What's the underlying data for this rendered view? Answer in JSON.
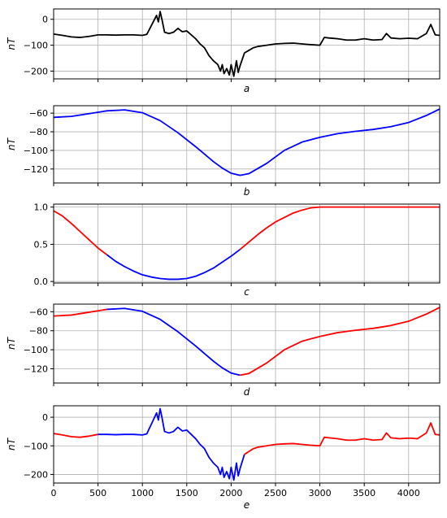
{
  "colors": {
    "original": "#000000",
    "low": "#0000ff",
    "high": "#ff0000",
    "grid": "#b0b0b0"
  },
  "chart_data": [
    {
      "type": "line",
      "sublabel": "a",
      "ylabel": "nT",
      "xlim": [
        0,
        4350
      ],
      "ylim": [
        -230,
        40
      ],
      "yticks": [
        0,
        -100,
        -200
      ],
      "xticks": [
        0,
        500,
        1000,
        1500,
        2000,
        2500,
        3000,
        3500,
        4000
      ],
      "show_xtick_labels": false,
      "grid": true,
      "series": [
        {
          "color": "#000000",
          "x": [
            0,
            100,
            200,
            300,
            400,
            500,
            600,
            700,
            800,
            900,
            1000,
            1050,
            1100,
            1130,
            1160,
            1180,
            1200,
            1220,
            1250,
            1300,
            1350,
            1400,
            1450,
            1500,
            1550,
            1600,
            1650,
            1700,
            1750,
            1800,
            1850,
            1880,
            1900,
            1920,
            1950,
            1980,
            2000,
            2030,
            2060,
            2080,
            2100,
            2150,
            2200,
            2250,
            2300,
            2400,
            2500,
            2600,
            2700,
            2800,
            2900,
            3000,
            3050,
            3100,
            3200,
            3300,
            3400,
            3500,
            3600,
            3700,
            3750,
            3800,
            3900,
            4000,
            4100,
            4200,
            4250,
            4300,
            4350
          ],
          "y": [
            -57,
            -62,
            -68,
            -70,
            -66,
            -60,
            -60,
            -61,
            -60,
            -60,
            -62,
            -58,
            -25,
            -5,
            15,
            -10,
            30,
            0,
            -50,
            -55,
            -50,
            -35,
            -48,
            -45,
            -60,
            -75,
            -95,
            -110,
            -140,
            -160,
            -175,
            -200,
            -175,
            -210,
            -190,
            -215,
            -175,
            -220,
            -160,
            -205,
            -180,
            -130,
            -120,
            -110,
            -105,
            -100,
            -95,
            -93,
            -92,
            -95,
            -98,
            -100,
            -70,
            -72,
            -75,
            -80,
            -80,
            -75,
            -80,
            -78,
            -55,
            -72,
            -75,
            -73,
            -75,
            -55,
            -20,
            -60,
            -62
          ]
        }
      ]
    },
    {
      "type": "line",
      "sublabel": "b",
      "ylabel": "nT",
      "xlim": [
        0,
        4350
      ],
      "ylim": [
        -135,
        -52
      ],
      "yticks": [
        -60,
        -80,
        -100,
        -120
      ],
      "xticks": [
        0,
        500,
        1000,
        1500,
        2000,
        2500,
        3000,
        3500,
        4000
      ],
      "show_xtick_labels": false,
      "grid": true,
      "series": [
        {
          "color": "#0000ff",
          "x": [
            0,
            200,
            400,
            600,
            800,
            1000,
            1200,
            1400,
            1600,
            1800,
            1900,
            2000,
            2100,
            2200,
            2400,
            2600,
            2800,
            3000,
            3200,
            3400,
            3600,
            3800,
            4000,
            4200,
            4350
          ],
          "y": [
            -64.5,
            -63.5,
            -60.5,
            -57.5,
            -56.5,
            -59.5,
            -68,
            -81,
            -96,
            -112,
            -119,
            -124.5,
            -126.8,
            -125,
            -114,
            -100,
            -91,
            -86,
            -82,
            -79.5,
            -77.5,
            -74.5,
            -70,
            -62.5,
            -55.5
          ]
        }
      ]
    },
    {
      "type": "line",
      "sublabel": "c",
      "ylabel": "",
      "xlim": [
        0,
        4350
      ],
      "ylim": [
        -0.02,
        1.04
      ],
      "yticks": [
        1.0,
        0.5,
        0.0
      ],
      "ytick_labels": [
        "1.0",
        "0.5",
        "0.0"
      ],
      "xticks": [
        0,
        500,
        1000,
        1500,
        2000,
        2500,
        3000,
        3500,
        4000
      ],
      "show_xtick_labels": false,
      "grid": true,
      "series": [
        {
          "color": "#ff0000",
          "x": [
            0,
            100,
            200,
            300,
            400,
            500,
            600
          ],
          "y": [
            0.95,
            0.88,
            0.78,
            0.67,
            0.56,
            0.45,
            0.36
          ]
        },
        {
          "color": "#0000ff",
          "x": [
            600,
            700,
            800,
            900,
            1000,
            1100,
            1200,
            1300,
            1400,
            1500,
            1600,
            1700,
            1800,
            1900,
            2000,
            2100
          ],
          "y": [
            0.36,
            0.27,
            0.2,
            0.14,
            0.09,
            0.06,
            0.04,
            0.03,
            0.03,
            0.04,
            0.07,
            0.12,
            0.18,
            0.26,
            0.34,
            0.43
          ]
        },
        {
          "color": "#ff0000",
          "x": [
            2100,
            2200,
            2300,
            2400,
            2500,
            2600,
            2700,
            2800,
            2900,
            3000,
            3500,
            4000,
            4350
          ],
          "y": [
            0.43,
            0.53,
            0.63,
            0.72,
            0.8,
            0.86,
            0.92,
            0.96,
            0.99,
            1.0,
            1.0,
            1.0,
            1.0
          ]
        }
      ]
    },
    {
      "type": "line",
      "sublabel": "d",
      "ylabel": "nT",
      "xlim": [
        0,
        4350
      ],
      "ylim": [
        -135,
        -52
      ],
      "yticks": [
        -60,
        -80,
        -100,
        -120
      ],
      "xticks": [
        0,
        500,
        1000,
        1500,
        2000,
        2500,
        3000,
        3500,
        4000
      ],
      "show_xtick_labels": false,
      "grid": true,
      "series": [
        {
          "color": "#ff0000",
          "x": [
            0,
            200,
            400,
            600
          ],
          "y": [
            -64.5,
            -63.5,
            -60.5,
            -57.5
          ]
        },
        {
          "color": "#0000ff",
          "x": [
            600,
            800,
            1000,
            1200,
            1400,
            1600,
            1800,
            1900,
            2000,
            2100
          ],
          "y": [
            -57.5,
            -56.5,
            -59.5,
            -68,
            -81,
            -96,
            -112,
            -119,
            -124.5,
            -126.8
          ]
        },
        {
          "color": "#ff0000",
          "x": [
            2100,
            2200,
            2400,
            2600,
            2800,
            3000,
            3200,
            3400,
            3600,
            3800,
            4000,
            4200,
            4350
          ],
          "y": [
            -126.8,
            -125,
            -114,
            -100,
            -91,
            -86,
            -82,
            -79.5,
            -77.5,
            -74.5,
            -70,
            -62.5,
            -55.5
          ]
        }
      ]
    },
    {
      "type": "line",
      "sublabel": "e",
      "ylabel": "nT",
      "xlim": [
        0,
        4350
      ],
      "ylim": [
        -230,
        40
      ],
      "yticks": [
        0,
        -100,
        -200
      ],
      "xticks": [
        0,
        500,
        1000,
        1500,
        2000,
        2500,
        3000,
        3500,
        4000
      ],
      "show_xtick_labels": true,
      "grid": true,
      "series": [
        {
          "color": "#ff0000",
          "x": [
            0,
            100,
            200,
            300,
            400,
            500
          ],
          "y": [
            -57,
            -62,
            -68,
            -70,
            -66,
            -60
          ]
        },
        {
          "color": "#0000ff",
          "x": [
            500,
            600,
            700,
            800,
            900,
            1000,
            1050,
            1100,
            1130,
            1160,
            1180,
            1200,
            1220,
            1250,
            1300,
            1350,
            1400,
            1450,
            1500,
            1550,
            1600,
            1650,
            1700,
            1750,
            1800,
            1850,
            1880,
            1900,
            1920,
            1950,
            1980,
            2000,
            2030,
            2060,
            2080,
            2100,
            2150
          ],
          "y": [
            -60,
            -60,
            -61,
            -60,
            -60,
            -62,
            -58,
            -25,
            -5,
            15,
            -10,
            30,
            0,
            -50,
            -55,
            -50,
            -35,
            -48,
            -45,
            -60,
            -75,
            -95,
            -110,
            -140,
            -160,
            -175,
            -200,
            -175,
            -210,
            -190,
            -215,
            -175,
            -220,
            -160,
            -205,
            -180,
            -130
          ]
        },
        {
          "color": "#ff0000",
          "x": [
            2150,
            2200,
            2250,
            2300,
            2400,
            2500,
            2600,
            2700,
            2800,
            2900,
            3000,
            3050,
            3100,
            3200,
            3300,
            3400,
            3500,
            3600,
            3700,
            3750,
            3800,
            3900,
            4000,
            4100,
            4200,
            4250,
            4300,
            4350
          ],
          "y": [
            -130,
            -120,
            -110,
            -105,
            -100,
            -95,
            -93,
            -92,
            -95,
            -98,
            -100,
            -70,
            -72,
            -75,
            -80,
            -80,
            -75,
            -80,
            -78,
            -55,
            -72,
            -75,
            -73,
            -75,
            -55,
            -20,
            -60,
            -62
          ]
        }
      ]
    }
  ]
}
